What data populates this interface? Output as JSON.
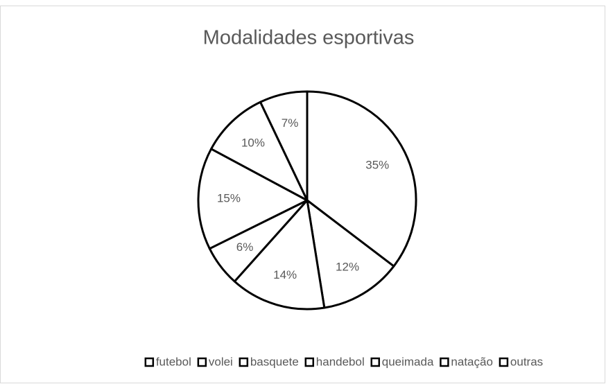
{
  "chart_data": {
    "type": "pie",
    "title": "Modalidades esportivas",
    "categories": [
      "futebol",
      "volei",
      "basquete",
      "handebol",
      "queimada",
      "natação",
      "outras"
    ],
    "values": [
      35,
      12,
      14,
      6,
      15,
      10,
      7
    ],
    "value_labels": [
      "35%",
      "12%",
      "14%",
      "6%",
      "15%",
      "10%",
      "7%"
    ],
    "color": "#ffffff",
    "edgecolor": "#000000",
    "legend": "bottom"
  }
}
